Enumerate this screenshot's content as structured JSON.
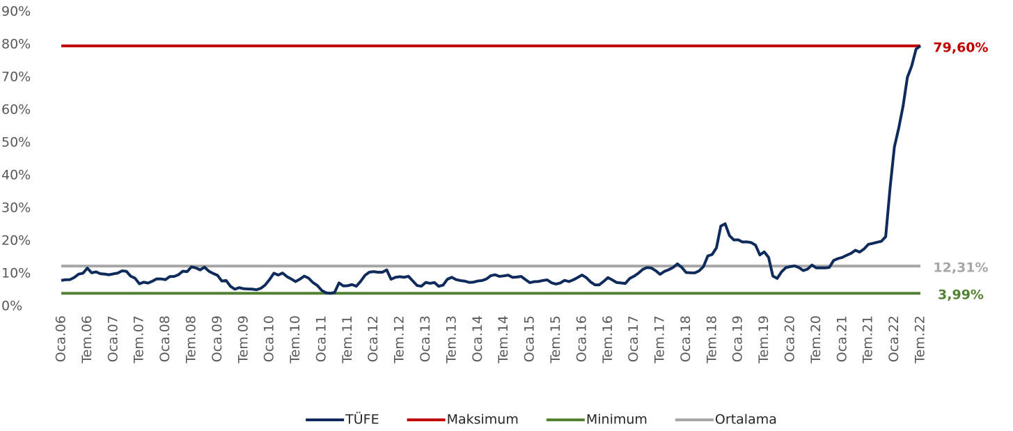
{
  "chart_data": {
    "type": "line",
    "categories": [
      "Oca.06",
      null,
      null,
      null,
      null,
      null,
      "Tem.06",
      null,
      null,
      null,
      null,
      null,
      "Oca.07",
      null,
      null,
      null,
      null,
      null,
      "Tem.07",
      null,
      null,
      null,
      null,
      null,
      "Oca.08",
      null,
      null,
      null,
      null,
      null,
      "Tem.08",
      null,
      null,
      null,
      null,
      null,
      "Oca.09",
      null,
      null,
      null,
      null,
      null,
      "Tem.09",
      null,
      null,
      null,
      null,
      null,
      "Oca.10",
      null,
      null,
      null,
      null,
      null,
      "Tem.10",
      null,
      null,
      null,
      null,
      null,
      "Oca.11",
      null,
      null,
      null,
      null,
      null,
      "Tem.11",
      null,
      null,
      null,
      null,
      null,
      "Oca.12",
      null,
      null,
      null,
      null,
      null,
      "Tem.12",
      null,
      null,
      null,
      null,
      null,
      "Oca.13",
      null,
      null,
      null,
      null,
      null,
      "Tem.13",
      null,
      null,
      null,
      null,
      null,
      "Oca.14",
      null,
      null,
      null,
      null,
      null,
      "Tem.14",
      null,
      null,
      null,
      null,
      null,
      "Oca.15",
      null,
      null,
      null,
      null,
      null,
      "Tem.15",
      null,
      null,
      null,
      null,
      null,
      "Oca.16",
      null,
      null,
      null,
      null,
      null,
      "Tem.16",
      null,
      null,
      null,
      null,
      null,
      "Oca.17",
      null,
      null,
      null,
      null,
      null,
      "Tem.17",
      null,
      null,
      null,
      null,
      null,
      "Oca.18",
      null,
      null,
      null,
      null,
      null,
      "Tem.18",
      null,
      null,
      null,
      null,
      null,
      "Oca.19",
      null,
      null,
      null,
      null,
      null,
      "Tem.19",
      null,
      null,
      null,
      null,
      null,
      "Oca.20",
      null,
      null,
      null,
      null,
      null,
      "Tem.20",
      null,
      null,
      null,
      null,
      null,
      "Oca.21",
      null,
      null,
      null,
      null,
      null,
      "Tem.21",
      null,
      null,
      null,
      null,
      null,
      "Oca.22",
      null,
      null,
      null,
      null,
      null,
      "Tem.22"
    ],
    "series": [
      {
        "name": "TÜFE",
        "color": "#0f2b5b",
        "values": [
          7.93,
          8.15,
          8.16,
          8.83,
          9.86,
          10.12,
          11.69,
          10.26,
          10.55,
          9.98,
          9.86,
          9.65,
          9.93,
          10.16,
          10.86,
          10.72,
          9.23,
          8.6,
          6.9,
          7.39,
          7.12,
          7.7,
          8.4,
          8.39,
          8.17,
          9.1,
          9.15,
          9.66,
          10.74,
          10.61,
          12.06,
          11.77,
          11.13,
          11.99,
          10.76,
          10.06,
          9.5,
          7.73,
          7.89,
          6.13,
          5.24,
          5.73,
          5.39,
          5.33,
          5.27,
          5.08,
          5.53,
          6.53,
          8.19,
          10.13,
          9.56,
          10.19,
          9.1,
          8.37,
          7.58,
          8.33,
          9.24,
          8.62,
          7.29,
          6.4,
          4.9,
          4.16,
          3.99,
          4.26,
          7.17,
          6.24,
          6.31,
          6.65,
          6.15,
          7.66,
          9.48,
          10.45,
          10.61,
          10.43,
          10.43,
          11.14,
          8.28,
          8.87,
          9.07,
          8.88,
          9.19,
          7.8,
          6.37,
          6.16,
          7.31,
          7.03,
          7.29,
          6.13,
          6.51,
          8.3,
          8.88,
          8.17,
          7.88,
          7.71,
          7.32,
          7.4,
          7.75,
          7.89,
          8.39,
          9.38,
          9.66,
          9.16,
          9.32,
          9.54,
          8.86,
          8.96,
          9.15,
          8.17,
          7.24,
          7.55,
          7.61,
          7.91,
          8.09,
          7.2,
          6.81,
          7.14,
          7.95,
          7.58,
          8.1,
          8.81,
          9.58,
          8.78,
          7.46,
          6.57,
          6.58,
          7.64,
          8.79,
          8.05,
          7.28,
          7.16,
          7.0,
          8.53,
          9.22,
          10.13,
          11.29,
          11.87,
          11.72,
          10.9,
          9.79,
          10.68,
          11.2,
          11.9,
          12.98,
          11.92,
          10.35,
          10.26,
          10.23,
          10.85,
          12.15,
          15.39,
          15.85,
          17.9,
          24.52,
          25.24,
          21.62,
          20.3,
          20.35,
          19.67,
          19.71,
          19.5,
          18.71,
          15.72,
          16.65,
          15.01,
          9.26,
          8.55,
          10.56,
          11.84,
          12.15,
          12.37,
          11.86,
          10.94,
          11.39,
          12.62,
          11.76,
          11.77,
          11.75,
          11.89,
          14.03,
          14.6,
          14.97,
          15.61,
          16.19,
          17.14,
          16.59,
          17.53,
          18.95,
          19.25,
          19.58,
          19.89,
          21.31,
          36.08,
          48.69,
          54.44,
          61.14,
          69.97,
          73.5,
          78.62,
          79.6
        ]
      }
    ],
    "reference_lines": [
      {
        "name": "Maksimum",
        "color": "#c00000",
        "value": 79.6,
        "value_label": "79,60%"
      },
      {
        "name": "Minimum",
        "color": "#548235",
        "value": 3.99,
        "value_label": "3,99%"
      },
      {
        "name": "Ortalama",
        "color": "#a6a6a6",
        "value": 12.31,
        "value_label": "12,31%"
      }
    ],
    "ylim": [
      0,
      90
    ],
    "yticks": [
      {
        "value": 0,
        "label": "0%"
      },
      {
        "value": 10,
        "label": "10%"
      },
      {
        "value": 20,
        "label": "20%"
      },
      {
        "value": 30,
        "label": "30%"
      },
      {
        "value": 40,
        "label": "40%"
      },
      {
        "value": 50,
        "label": "50%"
      },
      {
        "value": 60,
        "label": "60%"
      },
      {
        "value": 70,
        "label": "70%"
      },
      {
        "value": 80,
        "label": "80%"
      },
      {
        "value": 90,
        "label": "90%"
      }
    ],
    "grid": false,
    "legend": "bottom"
  }
}
